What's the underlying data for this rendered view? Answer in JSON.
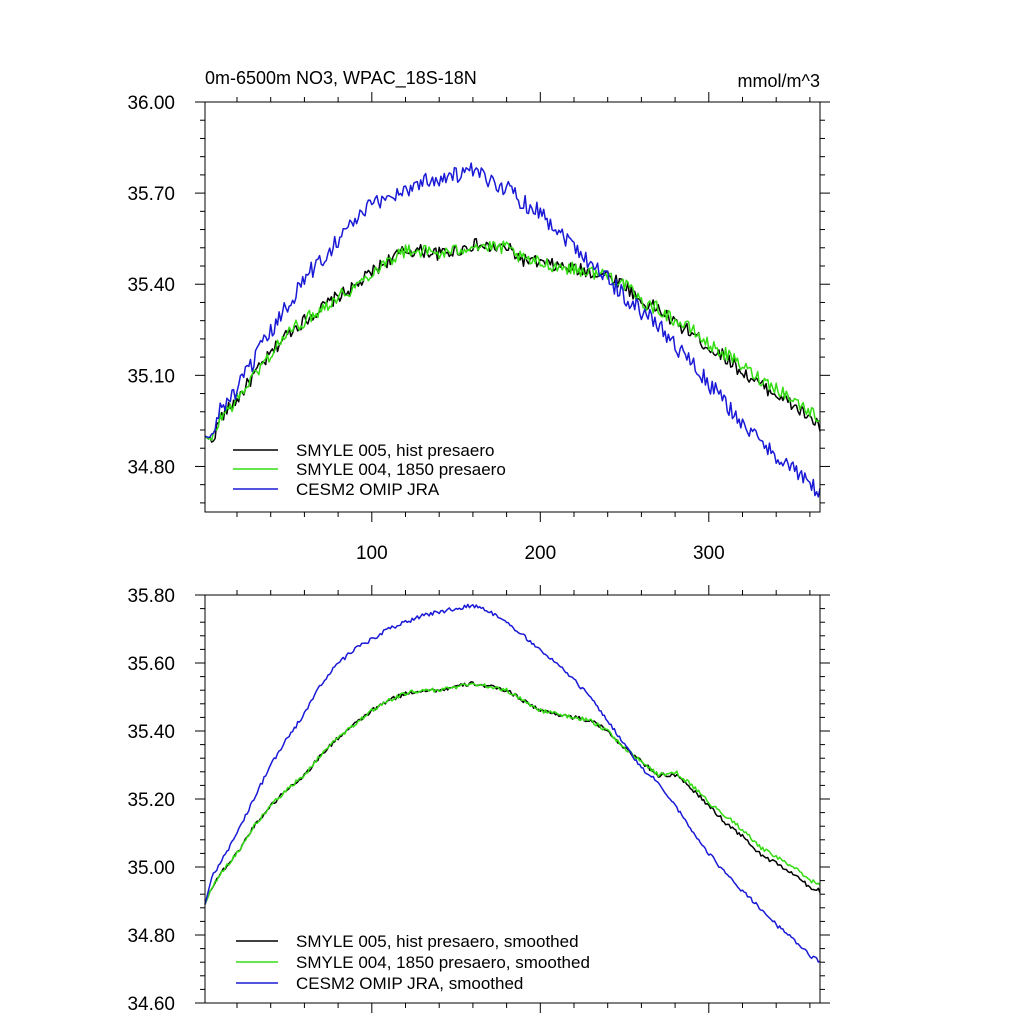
{
  "chart_data": [
    {
      "type": "line",
      "title": "0m-6500m NO3, WPAC_18S-18N",
      "units": "mmol/m^3",
      "xlim": [
        1,
        366
      ],
      "ylim": [
        34.65,
        36.0
      ],
      "xticks": [
        100,
        200,
        300
      ],
      "xtick_labels": [
        "100",
        "200",
        "300"
      ],
      "yticks": [
        34.8,
        35.1,
        35.4,
        35.7,
        36.0
      ],
      "ytick_labels": [
        "34.80",
        "35.10",
        "35.40",
        "35.70",
        "36.00"
      ],
      "legend_position": "bottom-left",
      "series": [
        {
          "name": "SMYLE 005, hist presaero",
          "color": "#000000",
          "noise": 0.022,
          "x": [
            1,
            5,
            10,
            20,
            30,
            40,
            50,
            60,
            70,
            80,
            90,
            100,
            110,
            120,
            130,
            140,
            150,
            160,
            170,
            180,
            190,
            200,
            210,
            220,
            230,
            240,
            250,
            260,
            270,
            280,
            290,
            300,
            310,
            320,
            330,
            340,
            350,
            360,
            366
          ],
          "values": [
            34.9,
            34.88,
            34.96,
            35.02,
            35.1,
            35.17,
            35.24,
            35.28,
            35.32,
            35.36,
            35.39,
            35.44,
            35.48,
            35.51,
            35.51,
            35.5,
            35.51,
            35.53,
            35.52,
            35.52,
            35.48,
            35.47,
            35.46,
            35.45,
            35.44,
            35.43,
            35.4,
            35.34,
            35.32,
            35.27,
            35.24,
            35.19,
            35.16,
            35.11,
            35.07,
            35.04,
            35.0,
            34.96,
            34.93
          ]
        },
        {
          "name": "SMYLE 004, 1850 presaero",
          "color": "#33dd11",
          "noise": 0.022,
          "x": [
            1,
            5,
            10,
            20,
            30,
            40,
            50,
            60,
            70,
            80,
            90,
            100,
            110,
            120,
            130,
            140,
            150,
            160,
            170,
            180,
            190,
            200,
            210,
            220,
            230,
            240,
            250,
            260,
            270,
            280,
            290,
            300,
            310,
            320,
            330,
            340,
            350,
            360,
            366
          ],
          "values": [
            34.9,
            34.88,
            34.96,
            35.02,
            35.1,
            35.17,
            35.24,
            35.28,
            35.32,
            35.36,
            35.39,
            35.44,
            35.48,
            35.51,
            35.51,
            35.5,
            35.51,
            35.53,
            35.52,
            35.52,
            35.48,
            35.47,
            35.46,
            35.45,
            35.44,
            35.43,
            35.4,
            35.34,
            35.32,
            35.28,
            35.25,
            35.2,
            35.17,
            35.13,
            35.09,
            35.06,
            35.02,
            34.98,
            34.96
          ]
        },
        {
          "name": "CESM2 OMIP JRA",
          "color": "#1a1ad6",
          "noise": 0.03,
          "x": [
            1,
            5,
            10,
            20,
            30,
            40,
            50,
            60,
            70,
            80,
            90,
            100,
            110,
            120,
            130,
            140,
            150,
            160,
            170,
            180,
            190,
            200,
            210,
            220,
            230,
            240,
            250,
            260,
            270,
            280,
            290,
            300,
            310,
            320,
            330,
            340,
            350,
            360,
            366
          ],
          "values": [
            34.9,
            34.89,
            34.99,
            35.05,
            35.15,
            35.24,
            35.33,
            35.42,
            35.48,
            35.55,
            35.61,
            35.66,
            35.69,
            35.71,
            35.74,
            35.75,
            35.76,
            35.77,
            35.74,
            35.72,
            35.67,
            35.64,
            35.58,
            35.53,
            35.47,
            35.42,
            35.36,
            35.31,
            35.27,
            35.2,
            35.14,
            35.07,
            35.01,
            34.94,
            34.88,
            34.84,
            34.79,
            34.74,
            34.71
          ]
        }
      ]
    },
    {
      "type": "line",
      "title": "",
      "units": "",
      "xlim": [
        1,
        366
      ],
      "ylim": [
        34.6,
        35.8
      ],
      "xticks": [
        100,
        200,
        300
      ],
      "xtick_labels": [],
      "yticks": [
        34.6,
        34.8,
        35.0,
        35.2,
        35.4,
        35.6,
        35.8
      ],
      "ytick_labels": [
        "34.60",
        "34.80",
        "35.00",
        "35.20",
        "35.40",
        "35.60",
        "35.80"
      ],
      "legend_position": "bottom-left",
      "series": [
        {
          "name": "SMYLE 005, hist presaero, smoothed",
          "color": "#000000",
          "noise": 0.006,
          "x": [
            1,
            5,
            10,
            20,
            30,
            40,
            50,
            60,
            70,
            80,
            90,
            100,
            110,
            120,
            130,
            140,
            150,
            160,
            170,
            180,
            190,
            200,
            210,
            220,
            230,
            240,
            250,
            260,
            270,
            280,
            290,
            300,
            310,
            320,
            330,
            340,
            350,
            360,
            366
          ],
          "values": [
            34.89,
            34.94,
            34.98,
            35.04,
            35.12,
            35.18,
            35.23,
            35.27,
            35.33,
            35.38,
            35.42,
            35.46,
            35.49,
            35.51,
            35.52,
            35.52,
            35.53,
            35.54,
            35.53,
            35.52,
            35.49,
            35.46,
            35.45,
            35.44,
            35.43,
            35.4,
            35.35,
            35.31,
            35.27,
            35.27,
            35.23,
            35.18,
            35.13,
            35.09,
            35.04,
            35.01,
            34.98,
            34.94,
            34.93
          ]
        },
        {
          "name": "SMYLE 004, 1850 presaero, smoothed",
          "color": "#33dd11",
          "noise": 0.006,
          "x": [
            1,
            5,
            10,
            20,
            30,
            40,
            50,
            60,
            70,
            80,
            90,
            100,
            110,
            120,
            130,
            140,
            150,
            160,
            170,
            180,
            190,
            200,
            210,
            220,
            230,
            240,
            250,
            260,
            270,
            280,
            290,
            300,
            310,
            320,
            330,
            340,
            350,
            360,
            366
          ],
          "values": [
            34.89,
            34.94,
            34.98,
            35.04,
            35.12,
            35.18,
            35.23,
            35.27,
            35.33,
            35.38,
            35.42,
            35.46,
            35.49,
            35.51,
            35.52,
            35.52,
            35.53,
            35.54,
            35.53,
            35.52,
            35.49,
            35.46,
            35.45,
            35.44,
            35.43,
            35.4,
            35.35,
            35.31,
            35.27,
            35.28,
            35.24,
            35.19,
            35.15,
            35.11,
            35.06,
            35.03,
            35.0,
            34.96,
            34.95
          ]
        },
        {
          "name": "CESM2 OMIP JRA, smoothed",
          "color": "#1a1ad6",
          "noise": 0.006,
          "x": [
            1,
            5,
            10,
            20,
            30,
            40,
            50,
            60,
            70,
            80,
            90,
            100,
            110,
            120,
            130,
            140,
            150,
            160,
            170,
            180,
            190,
            200,
            210,
            220,
            230,
            240,
            250,
            260,
            270,
            280,
            290,
            300,
            310,
            320,
            330,
            340,
            350,
            360,
            366
          ],
          "values": [
            34.89,
            34.97,
            35.01,
            35.1,
            35.2,
            35.3,
            35.38,
            35.45,
            35.54,
            35.6,
            35.64,
            35.67,
            35.7,
            35.72,
            35.74,
            35.75,
            35.76,
            35.77,
            35.75,
            35.72,
            35.68,
            35.64,
            35.6,
            35.55,
            35.5,
            35.43,
            35.36,
            35.29,
            35.25,
            35.18,
            35.11,
            35.04,
            34.98,
            34.93,
            34.88,
            34.83,
            34.79,
            34.74,
            34.72
          ]
        }
      ]
    }
  ]
}
